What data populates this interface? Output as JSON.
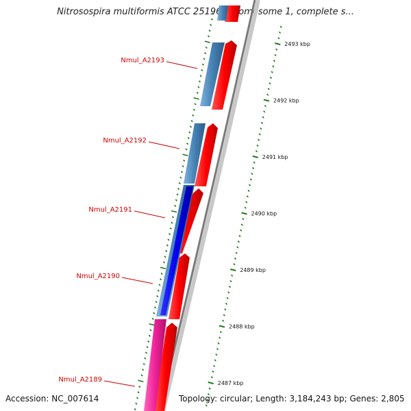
{
  "title": "Nitrosospira multiformis ATCC 25196 chromosome 1, complete s...",
  "accession": "Accession: NC_007614",
  "topology": "Topology: circular; Length: 3,184,243 bp; Genes: 2,805",
  "ruler": [
    {
      "pos_kbp": 2493,
      "label": "2493 kbp"
    },
    {
      "pos_kbp": 2492,
      "label": "2492 kbp"
    },
    {
      "pos_kbp": 2491,
      "label": "2491 kbp"
    },
    {
      "pos_kbp": 2490,
      "label": "2490 kbp"
    },
    {
      "pos_kbp": 2489,
      "label": "2489 kbp"
    },
    {
      "pos_kbp": 2488,
      "label": "2488 kbp"
    },
    {
      "pos_kbp": 2487,
      "label": "2487 kbp"
    }
  ],
  "gene_labels": [
    "Nmul_A2193",
    "Nmul_A2192",
    "Nmul_A2191",
    "Nmul_A2190",
    "Nmul_A2189"
  ],
  "colors": {
    "outer_track": "#ee0000",
    "inner_track_1": "#3f7fbf",
    "inner_track_2": "#0000ee",
    "inner_track_3": "#ee2299",
    "ticks": "#1a7a1a",
    "labels": "#cc0000",
    "backbone": "#7a7a7a"
  }
}
